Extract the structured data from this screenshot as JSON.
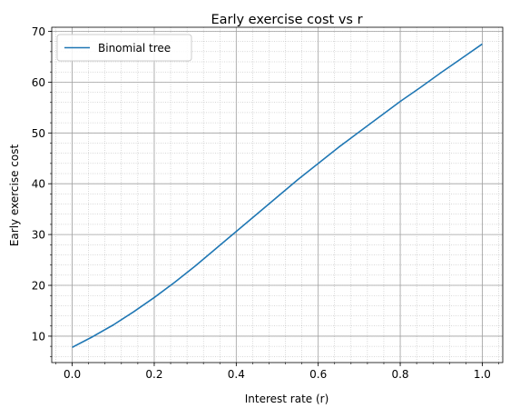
{
  "chart_data": {
    "type": "line",
    "title": "Early exercise cost vs r",
    "xlabel": "Interest rate (r)",
    "ylabel": "Early exercise cost",
    "xlim": [
      -0.05,
      1.05
    ],
    "ylim": [
      4.8,
      70.8
    ],
    "x_ticks": [
      0.0,
      0.2,
      0.4,
      0.6,
      0.8,
      1.0
    ],
    "x_tick_labels": [
      "0.0",
      "0.2",
      "0.4",
      "0.6",
      "0.8",
      "1.0"
    ],
    "y_ticks": [
      10,
      20,
      30,
      40,
      50,
      60,
      70
    ],
    "y_tick_labels": [
      "10",
      "20",
      "30",
      "40",
      "50",
      "60",
      "70"
    ],
    "grid": "major and minor",
    "legend_position": "upper-left",
    "series": [
      {
        "name": "Binomial tree",
        "color": "#1f77b4",
        "x": [
          0.0,
          0.05,
          0.1,
          0.15,
          0.2,
          0.25,
          0.3,
          0.35,
          0.4,
          0.45,
          0.5,
          0.55,
          0.6,
          0.65,
          0.7,
          0.75,
          0.8,
          0.85,
          0.9,
          0.95,
          1.0
        ],
        "y": [
          7.8,
          9.9,
          12.2,
          14.8,
          17.6,
          20.6,
          23.8,
          27.2,
          30.6,
          34.0,
          37.4,
          40.8,
          44.0,
          47.2,
          50.2,
          53.2,
          56.2,
          59.0,
          61.9,
          64.7,
          67.5
        ]
      }
    ]
  }
}
